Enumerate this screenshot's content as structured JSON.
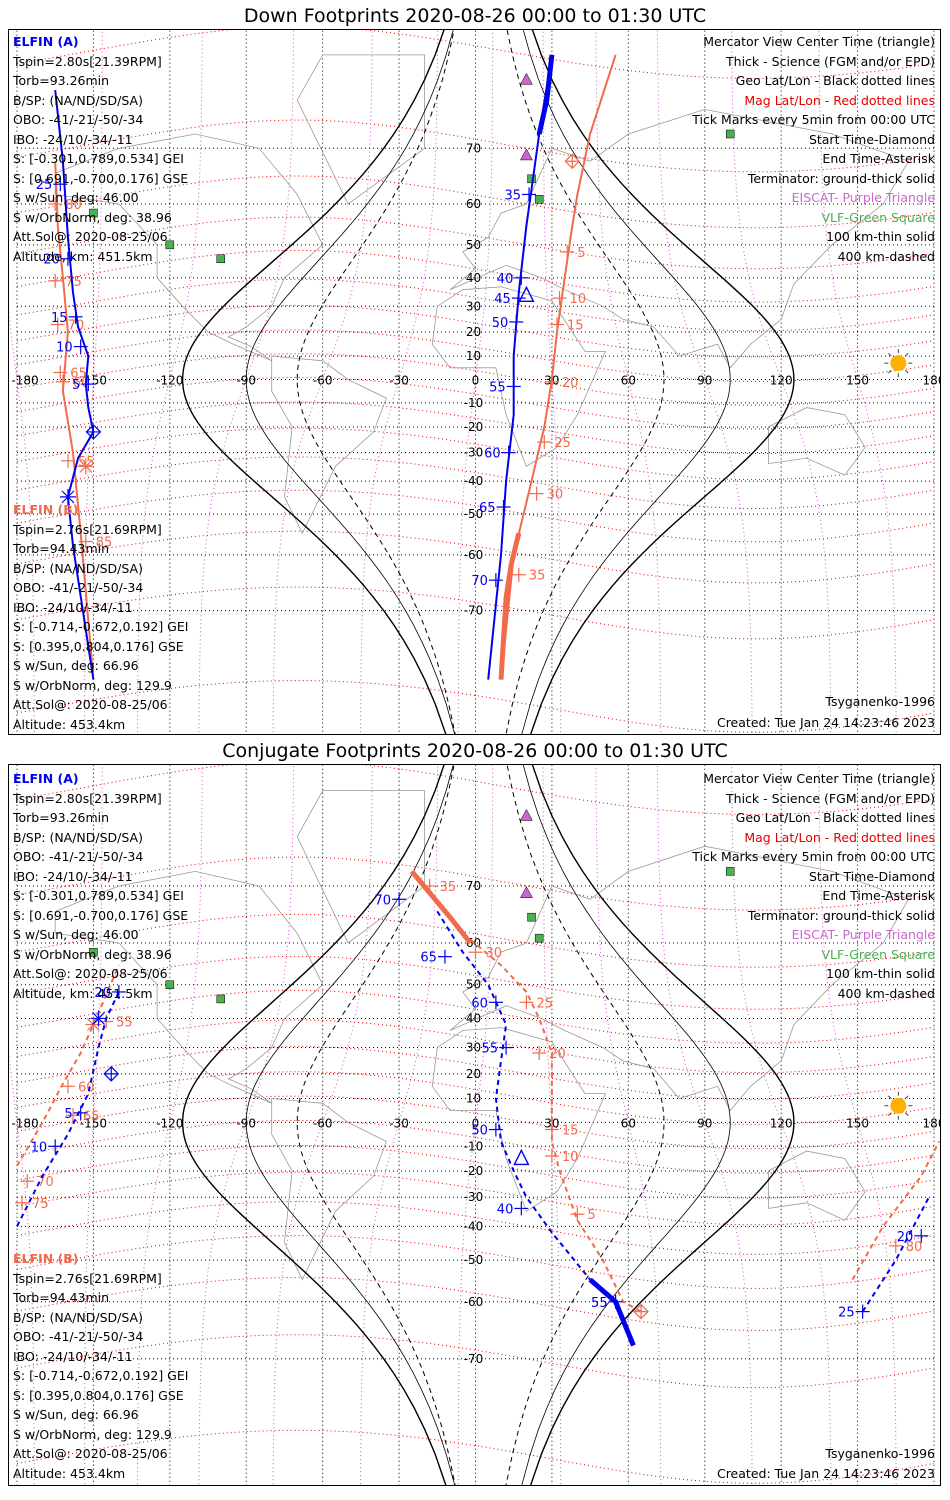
{
  "colors": {
    "elfin_a": "#0000ee",
    "elfin_b": "#f26a4c",
    "geo_grid": "#000000",
    "mag_grid": "#e60000",
    "eiscat": "#cc66cc",
    "vlf": "#4caf50",
    "sun": "#ffb000",
    "coast": "#9a9a9a"
  },
  "panels": [
    {
      "key": "down",
      "title": "Down Footprints 2020-08-26 00:00 to 01:30 UTC",
      "elfin_a": {
        "name": "ELFIN (A)",
        "lines": [
          "Tspin=2.80s[21.39RPM]",
          "Torb=93.26min",
          "B/SP: (NA/ND/SD/SA)",
          "OBO: -41/-21/-50/-34",
          "IBO: -24/10/-34/-11",
          "S: [-0.301,0.789,0.534] GEI",
          "S: [0.691,-0.700,0.176] GSE",
          "S w/Sun, deg: 46.00",
          "S w/OrbNorm, deg: 38.96",
          "Att.Sol@: 2020-08-25/06",
          "Altitude, km: 451.5km"
        ]
      },
      "elfin_b": {
        "name": "ELFIN (B)",
        "lines": [
          "Tspin=2.76s[21.69RPM]",
          "Torb=94.43min",
          "B/SP: (NA/ND/SD/SA)",
          "OBO: -41/-21/-50/-34",
          "IBO: -24/10/-34/-11",
          "S: [-0.714,-0.672,0.192] GEI",
          "S: [0.395,0.804,0.176] GSE",
          "S w/Sun, deg: 66.96",
          "S w/OrbNorm, deg: 129.9",
          "Att.Sol@: 2020-08-25/06",
          "Altitude: 453.4km"
        ]
      },
      "legend": [
        {
          "text": "Mercator View Center Time (triangle)",
          "color": "#000000"
        },
        {
          "text": "Thick - Science (FGM and/or EPD)",
          "color": "#000000"
        },
        {
          "text": "Geo Lat/Lon - Black dotted lines",
          "color": "#000000"
        },
        {
          "text": "Mag Lat/Lon - Red dotted lines",
          "color": "#e60000"
        },
        {
          "text": "Tick Marks every 5min from 00:00 UTC",
          "color": "#000000"
        },
        {
          "text": "Start Time-Diamond",
          "color": "#000000"
        },
        {
          "text": "End Time-Asterisk",
          "color": "#000000"
        },
        {
          "text": "Terminator: ground-thick solid",
          "color": "#000000"
        },
        {
          "text": "EISCAT- Purple Triangle",
          "color": "#cc66cc"
        },
        {
          "text": "VLF-Green Square",
          "color": "#4caf50"
        },
        {
          "text": "100 km-thin solid",
          "color": "#000000"
        },
        {
          "text": "400 km-dashed",
          "color": "#000000"
        }
      ],
      "model": "Tsyganenko-1996",
      "created": "Created: Tue Jan 24 14:23:46 2023",
      "lon_labels": [
        "-180",
        "-150",
        "-120",
        "-90",
        "-60",
        "-30",
        "0",
        "30",
        "60",
        "90",
        "120",
        "150",
        "180"
      ],
      "lat_labels": [
        "70",
        "60",
        "50",
        "40",
        "30",
        "20",
        "10",
        "0",
        "-10",
        "-20",
        "-30",
        "-40",
        "-50",
        "-60",
        "-70"
      ],
      "track_a": {
        "main": [
          [
            -165,
            77
          ],
          [
            -162,
            68
          ],
          [
            -160,
            52
          ],
          [
            -158,
            35
          ],
          [
            -156,
            22
          ],
          [
            -152,
            10
          ],
          [
            -153,
            -2
          ],
          [
            -152,
            -12
          ],
          [
            -150,
            -22
          ],
          [
            -156,
            -32
          ],
          [
            -160,
            -45
          ],
          [
            -158,
            -58
          ],
          [
            -150,
            -78
          ]
        ],
        "right": [
          [
            5,
            -78
          ],
          [
            10,
            -60
          ],
          [
            12,
            -40
          ],
          [
            15,
            -15
          ],
          [
            15,
            10
          ],
          [
            17,
            35
          ],
          [
            20,
            55
          ],
          [
            25,
            72
          ],
          [
            30,
            80
          ]
        ],
        "science": [
          [
            25,
            72
          ],
          [
            28,
            76
          ],
          [
            30,
            80
          ]
        ],
        "ticks": [
          {
            "lon": -152,
            "lat": -2,
            "label": "5"
          },
          {
            "lon": -155,
            "lat": 14,
            "label": "10"
          },
          {
            "lon": -157,
            "lat": 26,
            "label": "15"
          },
          {
            "lon": -160,
            "lat": 46,
            "label": "20"
          },
          {
            "lon": -163,
            "lat": 64,
            "label": "25"
          },
          {
            "lon": 18,
            "lat": 40,
            "label": "40"
          },
          {
            "lon": 17,
            "lat": 33,
            "label": "45"
          },
          {
            "lon": 16,
            "lat": 24,
            "label": "50"
          },
          {
            "lon": 15,
            "lat": -3,
            "label": "55"
          },
          {
            "lon": 13,
            "lat": -30,
            "label": "60"
          },
          {
            "lon": 11,
            "lat": -48,
            "label": "65"
          },
          {
            "lon": 8,
            "lat": -65,
            "label": "70"
          },
          {
            "lon": 21,
            "lat": 62,
            "label": "35"
          }
        ],
        "start": [
          -150,
          -22
        ],
        "end": [
          -160,
          -45
        ],
        "center": [
          20,
          34
        ]
      },
      "track_b": {
        "main": [
          [
            -165,
            68
          ],
          [
            -164,
            55
          ],
          [
            -162,
            40
          ],
          [
            -160,
            20
          ],
          [
            -162,
            -5
          ],
          [
            -158,
            -30
          ],
          [
            -155,
            -55
          ],
          [
            -150,
            -78
          ]
        ],
        "right": [
          [
            10,
            -78
          ],
          [
            15,
            -60
          ],
          [
            22,
            -40
          ],
          [
            27,
            -20
          ],
          [
            30,
            0
          ],
          [
            32,
            20
          ],
          [
            35,
            40
          ],
          [
            38,
            55
          ],
          [
            40,
            62
          ],
          [
            45,
            72
          ],
          [
            55,
            80
          ]
        ],
        "science": [
          [
            10,
            -78
          ],
          [
            12,
            -68
          ],
          [
            14,
            -62
          ],
          [
            17,
            -55
          ]
        ],
        "ticks": [
          {
            "lon": 36,
            "lat": 48,
            "label": "5"
          },
          {
            "lon": 33,
            "lat": 33,
            "label": "10"
          },
          {
            "lon": 32,
            "lat": 23,
            "label": "15"
          },
          {
            "lon": 30,
            "lat": -1,
            "label": "20"
          },
          {
            "lon": 27,
            "lat": -26,
            "label": "25"
          },
          {
            "lon": 24,
            "lat": -44,
            "label": "30"
          },
          {
            "lon": 17,
            "lat": -64,
            "label": "35"
          },
          {
            "lon": -160,
            "lat": -33,
            "label": "55"
          },
          {
            "lon": -162,
            "lat": -1,
            "label": "60"
          },
          {
            "lon": -163,
            "lat": 3,
            "label": "65"
          },
          {
            "lon": -164,
            "lat": 23,
            "label": "70"
          },
          {
            "lon": -165,
            "lat": 39,
            "label": "75"
          },
          {
            "lon": -165,
            "lat": 60,
            "label": "80"
          },
          {
            "lon": -153,
            "lat": -57,
            "label": "85"
          }
        ],
        "start": [
          38,
          68
        ],
        "end": [
          -153,
          -35
        ]
      },
      "terminator": [
        -110,
        120
      ],
      "sun": [
        166,
        7
      ]
    },
    {
      "key": "conj",
      "title": "Conjugate Footprints 2020-08-26 00:00 to 01:30 UTC",
      "elfin_a": {
        "name": "ELFIN (A)",
        "lines": [
          "Tspin=2.80s[21.39RPM]",
          "Torb=93.26min",
          "B/SP: (NA/ND/SD/SA)",
          "OBO: -41/-21/-50/-34",
          "IBO: -24/10/-34/-11",
          "S: [-0.301,0.789,0.534] GEI",
          "S: [0.691,-0.700,0.176] GSE",
          "S w/Sun, deg: 46.00",
          "S w/OrbNorm, deg: 38.96",
          "Att.Sol@: 2020-08-25/06",
          "Altitude, km: 451.5km"
        ]
      },
      "elfin_b": {
        "name": "ELFIN (B)",
        "lines": [
          "Tspin=2.76s[21.69RPM]",
          "Torb=94.43min",
          "B/SP: (NA/ND/SD/SA)",
          "OBO: -41/-21/-50/-34",
          "IBO: -24/10/-34/-11",
          "S: [-0.714,-0.672,0.192] GEI",
          "S: [0.395,0.804,0.176] GSE",
          "S w/Sun, deg: 66.96",
          "S w/OrbNorm, deg: 129.9",
          "Att.Sol@: 2020-08-25/06",
          "Altitude: 453.4km"
        ]
      },
      "legend": [
        {
          "text": "Mercator View Center Time (triangle)",
          "color": "#000000"
        },
        {
          "text": "Thick - Science (FGM and/or EPD)",
          "color": "#000000"
        },
        {
          "text": "Geo Lat/Lon - Black dotted lines",
          "color": "#000000"
        },
        {
          "text": "Mag Lat/Lon - Red dotted lines",
          "color": "#e60000"
        },
        {
          "text": "Tick Marks every 5min from 00:00 UTC",
          "color": "#000000"
        },
        {
          "text": "Start Time-Diamond",
          "color": "#000000"
        },
        {
          "text": "End Time-Asterisk",
          "color": "#000000"
        },
        {
          "text": "Terminator: ground-thick solid",
          "color": "#000000"
        },
        {
          "text": "EISCAT- Purple Triangle",
          "color": "#cc66cc"
        },
        {
          "text": "VLF-Green Square",
          "color": "#4caf50"
        },
        {
          "text": "100 km-thin solid",
          "color": "#000000"
        },
        {
          "text": "400 km-dashed",
          "color": "#000000"
        }
      ],
      "model": "Tsyganenko-1996",
      "created": "Created: Tue Jan 24 14:23:46 2023",
      "lon_labels": [
        "-180",
        "-150",
        "-120",
        "-90",
        "-60",
        "-30",
        "0",
        "30",
        "60",
        "90",
        "120",
        "150",
        "180"
      ],
      "lat_labels": [
        "70",
        "60",
        "50",
        "40",
        "30",
        "20",
        "10",
        "0",
        "-10",
        "-20",
        "-30",
        "-40",
        "-50",
        "-60",
        "-70"
      ],
      "track_a": {
        "main": [
          [
            -180,
            -40
          ],
          [
            -170,
            -22
          ],
          [
            -160,
            -5
          ],
          [
            -152,
            12
          ],
          [
            -148,
            30
          ],
          [
            -145,
            40
          ],
          [
            -140,
            48
          ]
        ],
        "right": [
          [
            -15,
            66
          ],
          [
            -5,
            58
          ],
          [
            5,
            50
          ],
          [
            12,
            38
          ],
          [
            10,
            25
          ],
          [
            8,
            10
          ],
          [
            10,
            -8
          ],
          [
            15,
            -20
          ],
          [
            20,
            -30
          ],
          [
            30,
            -42
          ],
          [
            45,
            -55
          ],
          [
            55,
            -60
          ],
          [
            62,
            -68
          ]
        ],
        "far": [
          [
            152,
            -62
          ],
          [
            165,
            -50
          ],
          [
            178,
            -30
          ]
        ],
        "science": [
          [
            45,
            -55
          ],
          [
            55,
            -60
          ],
          [
            62,
            -68
          ]
        ],
        "ticks": [
          {
            "lon": -165,
            "lat": -10,
            "label": "10"
          },
          {
            "lon": -155,
            "lat": 4,
            "label": "5"
          },
          {
            "lon": -140,
            "lat": 48,
            "label": "20"
          },
          {
            "lon": -30,
            "lat": 68,
            "label": "70"
          },
          {
            "lon": -12,
            "lat": 57,
            "label": "65"
          },
          {
            "lon": 8,
            "lat": 45,
            "label": "60"
          },
          {
            "lon": 12,
            "lat": 30,
            "label": "55"
          },
          {
            "lon": 8,
            "lat": -3,
            "label": "50"
          },
          {
            "lon": 18,
            "lat": -34,
            "label": "40"
          },
          {
            "lon": 55,
            "lat": -60,
            "label": "55"
          },
          {
            "lon": 175,
            "lat": -43,
            "label": "20"
          },
          {
            "lon": 152,
            "lat": -62,
            "label": "25"
          }
        ],
        "start": [
          -143,
          20
        ],
        "end": [
          -148,
          40
        ],
        "center": [
          18,
          -15
        ]
      },
      "track_b": {
        "main": [
          [
            -180,
            -18
          ],
          [
            -170,
            0
          ],
          [
            -162,
            16
          ],
          [
            -155,
            28
          ],
          [
            -150,
            38
          ],
          [
            -140,
            55
          ]
        ],
        "right": [
          [
            -25,
            72
          ],
          [
            -5,
            62
          ],
          [
            10,
            55
          ],
          [
            20,
            48
          ],
          [
            25,
            40
          ],
          [
            30,
            28
          ],
          [
            30,
            10
          ],
          [
            30,
            -8
          ],
          [
            33,
            -20
          ],
          [
            40,
            -38
          ],
          [
            50,
            -50
          ],
          [
            58,
            -60
          ],
          [
            65,
            -62
          ]
        ],
        "far": [
          [
            148,
            -55
          ],
          [
            160,
            -40
          ],
          [
            175,
            -22
          ],
          [
            182,
            -8
          ]
        ],
        "science": [
          [
            -25,
            72
          ],
          [
            -10,
            65
          ],
          [
            -2,
            60
          ]
        ],
        "ticks": [
          {
            "lon": -176,
            "lat": -24,
            "label": "70"
          },
          {
            "lon": -178,
            "lat": -32,
            "label": "75"
          },
          {
            "lon": -160,
            "lat": 15,
            "label": "60"
          },
          {
            "lon": -158,
            "lat": 3,
            "label": "65"
          },
          {
            "lon": -145,
            "lat": 39,
            "label": "55"
          },
          {
            "lon": -18,
            "lat": 70,
            "label": "35"
          },
          {
            "lon": 0,
            "lat": 58,
            "label": "30"
          },
          {
            "lon": 20,
            "lat": 45,
            "label": "25"
          },
          {
            "lon": 25,
            "lat": 28,
            "label": "20"
          },
          {
            "lon": 30,
            "lat": -3,
            "label": "15"
          },
          {
            "lon": 30,
            "lat": -14,
            "label": "10"
          },
          {
            "lon": 40,
            "lat": -36,
            "label": "5"
          },
          {
            "lon": 165,
            "lat": -46,
            "label": "80"
          }
        ],
        "start": [
          65,
          -62
        ],
        "end": [
          -150,
          38
        ]
      },
      "terminator": [
        -110,
        120
      ],
      "sun": [
        166,
        7
      ]
    }
  ]
}
